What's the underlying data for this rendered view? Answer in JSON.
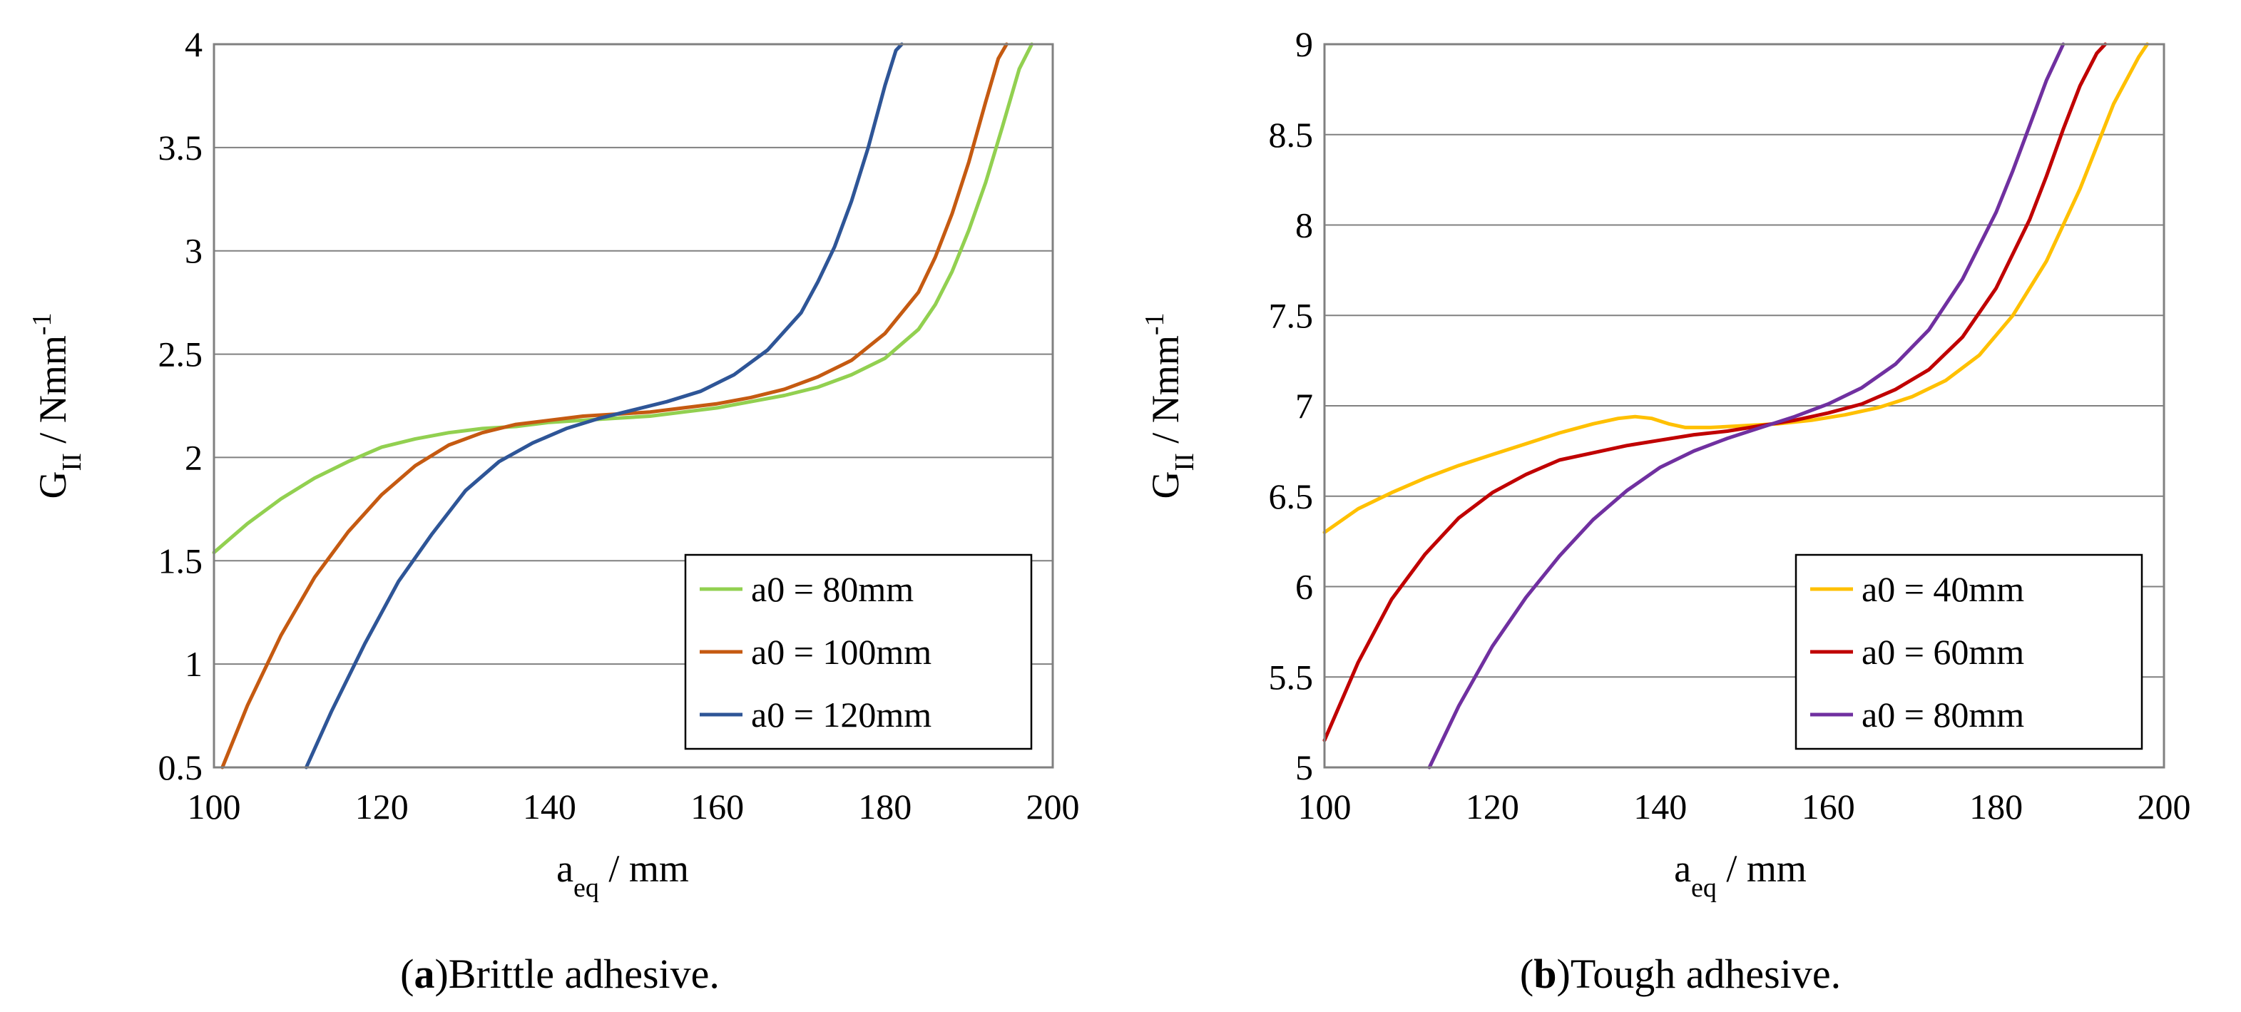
{
  "chart_data": [
    {
      "type": "line",
      "caption_letter": "a",
      "caption_text": "Brittle adhesive.",
      "xlabel_main": "a",
      "xlabel_sub": "eq",
      "xlabel_rest": " / mm",
      "ylabel_main": "G",
      "ylabel_sub": "II",
      "ylabel_rest": "  / Nmm",
      "ylabel_sup": "-1",
      "xlim": [
        100,
        200
      ],
      "ylim": [
        0.5,
        4
      ],
      "xticks": [
        100,
        120,
        140,
        160,
        180,
        200
      ],
      "yticks": [
        0.5,
        1,
        1.5,
        2,
        2.5,
        3,
        3.5,
        4
      ],
      "ytick_labels": [
        "0.5",
        "1",
        "1.5",
        "2",
        "2.5",
        "3",
        "3.5",
        "4"
      ],
      "grid": "horizontal",
      "legend_position": "bottom-right",
      "series": [
        {
          "name": "a0 = 80mm",
          "color": "#92d050",
          "x": [
            100,
            104,
            108,
            112,
            116,
            120,
            124,
            128,
            132,
            136,
            140,
            144,
            148,
            152,
            156,
            160,
            164,
            168,
            172,
            176,
            180,
            184,
            186,
            188,
            190,
            192,
            194,
            196,
            197.5
          ],
          "y": [
            1.54,
            1.68,
            1.8,
            1.9,
            1.98,
            2.05,
            2.09,
            2.12,
            2.14,
            2.15,
            2.17,
            2.18,
            2.19,
            2.2,
            2.22,
            2.24,
            2.27,
            2.3,
            2.34,
            2.4,
            2.48,
            2.62,
            2.74,
            2.9,
            3.1,
            3.33,
            3.6,
            3.88,
            4.0
          ]
        },
        {
          "name": "a0 = 100mm",
          "color": "#c55a11",
          "x": [
            101,
            104,
            108,
            112,
            116,
            120,
            124,
            128,
            132,
            136,
            140,
            144,
            148,
            152,
            156,
            160,
            164,
            168,
            172,
            176,
            180,
            184,
            186,
            188,
            190,
            192,
            193.5,
            194.5
          ],
          "y": [
            0.5,
            0.8,
            1.14,
            1.42,
            1.64,
            1.82,
            1.96,
            2.06,
            2.12,
            2.16,
            2.18,
            2.2,
            2.21,
            2.22,
            2.24,
            2.26,
            2.29,
            2.33,
            2.39,
            2.47,
            2.6,
            2.8,
            2.97,
            3.18,
            3.43,
            3.72,
            3.93,
            4.0
          ]
        },
        {
          "name": "a0 = 120mm",
          "color": "#2e5597",
          "x": [
            111,
            114,
            118,
            122,
            126,
            130,
            134,
            138,
            142,
            146,
            150,
            154,
            158,
            162,
            166,
            170,
            172,
            174,
            176,
            178,
            180,
            181.3,
            182
          ],
          "y": [
            0.5,
            0.77,
            1.1,
            1.4,
            1.63,
            1.84,
            1.98,
            2.07,
            2.14,
            2.19,
            2.23,
            2.27,
            2.32,
            2.4,
            2.52,
            2.7,
            2.85,
            3.02,
            3.24,
            3.5,
            3.8,
            3.97,
            4.0
          ]
        }
      ]
    },
    {
      "type": "line",
      "caption_letter": "b",
      "caption_text": "Tough adhesive.",
      "xlabel_main": "a",
      "xlabel_sub": "eq",
      "xlabel_rest": " / mm",
      "ylabel_main": "G",
      "ylabel_sub": "II",
      "ylabel_rest": "  / Nmm",
      "ylabel_sup": "-1",
      "xlim": [
        100,
        200
      ],
      "ylim": [
        5,
        9
      ],
      "xticks": [
        100,
        120,
        140,
        160,
        180,
        200
      ],
      "yticks": [
        5,
        5.5,
        6,
        6.5,
        7,
        7.5,
        8,
        8.5,
        9
      ],
      "ytick_labels": [
        "5",
        "5.5",
        "6",
        "6.5",
        "7",
        "7.5",
        "8",
        "8.5",
        "9"
      ],
      "grid": "horizontal",
      "legend_position": "bottom-right",
      "series": [
        {
          "name": "a0 = 40mm",
          "color": "#ffc000",
          "x": [
            100,
            104,
            108,
            112,
            116,
            120,
            124,
            128,
            132,
            135,
            137,
            139,
            141,
            143,
            146,
            150,
            154,
            158,
            162,
            166,
            170,
            174,
            178,
            182,
            186,
            190,
            194,
            197,
            198
          ],
          "y": [
            6.3,
            6.43,
            6.52,
            6.6,
            6.67,
            6.73,
            6.79,
            6.85,
            6.9,
            6.93,
            6.94,
            6.93,
            6.9,
            6.88,
            6.88,
            6.89,
            6.9,
            6.92,
            6.95,
            6.99,
            7.05,
            7.14,
            7.28,
            7.5,
            7.8,
            8.2,
            8.67,
            8.93,
            9.0
          ]
        },
        {
          "name": "a0 = 60mm",
          "color": "#c00000",
          "x": [
            100,
            104,
            108,
            112,
            116,
            120,
            124,
            128,
            132,
            136,
            140,
            144,
            148,
            152,
            156,
            160,
            164,
            168,
            172,
            176,
            180,
            184,
            186,
            188,
            190,
            192,
            193
          ],
          "y": [
            5.15,
            5.58,
            5.93,
            6.18,
            6.38,
            6.52,
            6.62,
            6.7,
            6.74,
            6.78,
            6.81,
            6.84,
            6.86,
            6.89,
            6.92,
            6.96,
            7.01,
            7.09,
            7.2,
            7.38,
            7.65,
            8.03,
            8.27,
            8.53,
            8.77,
            8.95,
            9.0
          ]
        },
        {
          "name": "a0 = 80mm",
          "color": "#7030a0",
          "x": [
            112.5,
            116,
            120,
            124,
            128,
            132,
            136,
            140,
            144,
            148,
            152,
            156,
            160,
            164,
            168,
            172,
            176,
            180,
            182,
            184,
            186,
            188
          ],
          "y": [
            5.0,
            5.34,
            5.67,
            5.94,
            6.17,
            6.37,
            6.53,
            6.66,
            6.75,
            6.82,
            6.88,
            6.94,
            7.01,
            7.1,
            7.23,
            7.42,
            7.7,
            8.07,
            8.3,
            8.55,
            8.8,
            9.0
          ]
        }
      ]
    }
  ]
}
